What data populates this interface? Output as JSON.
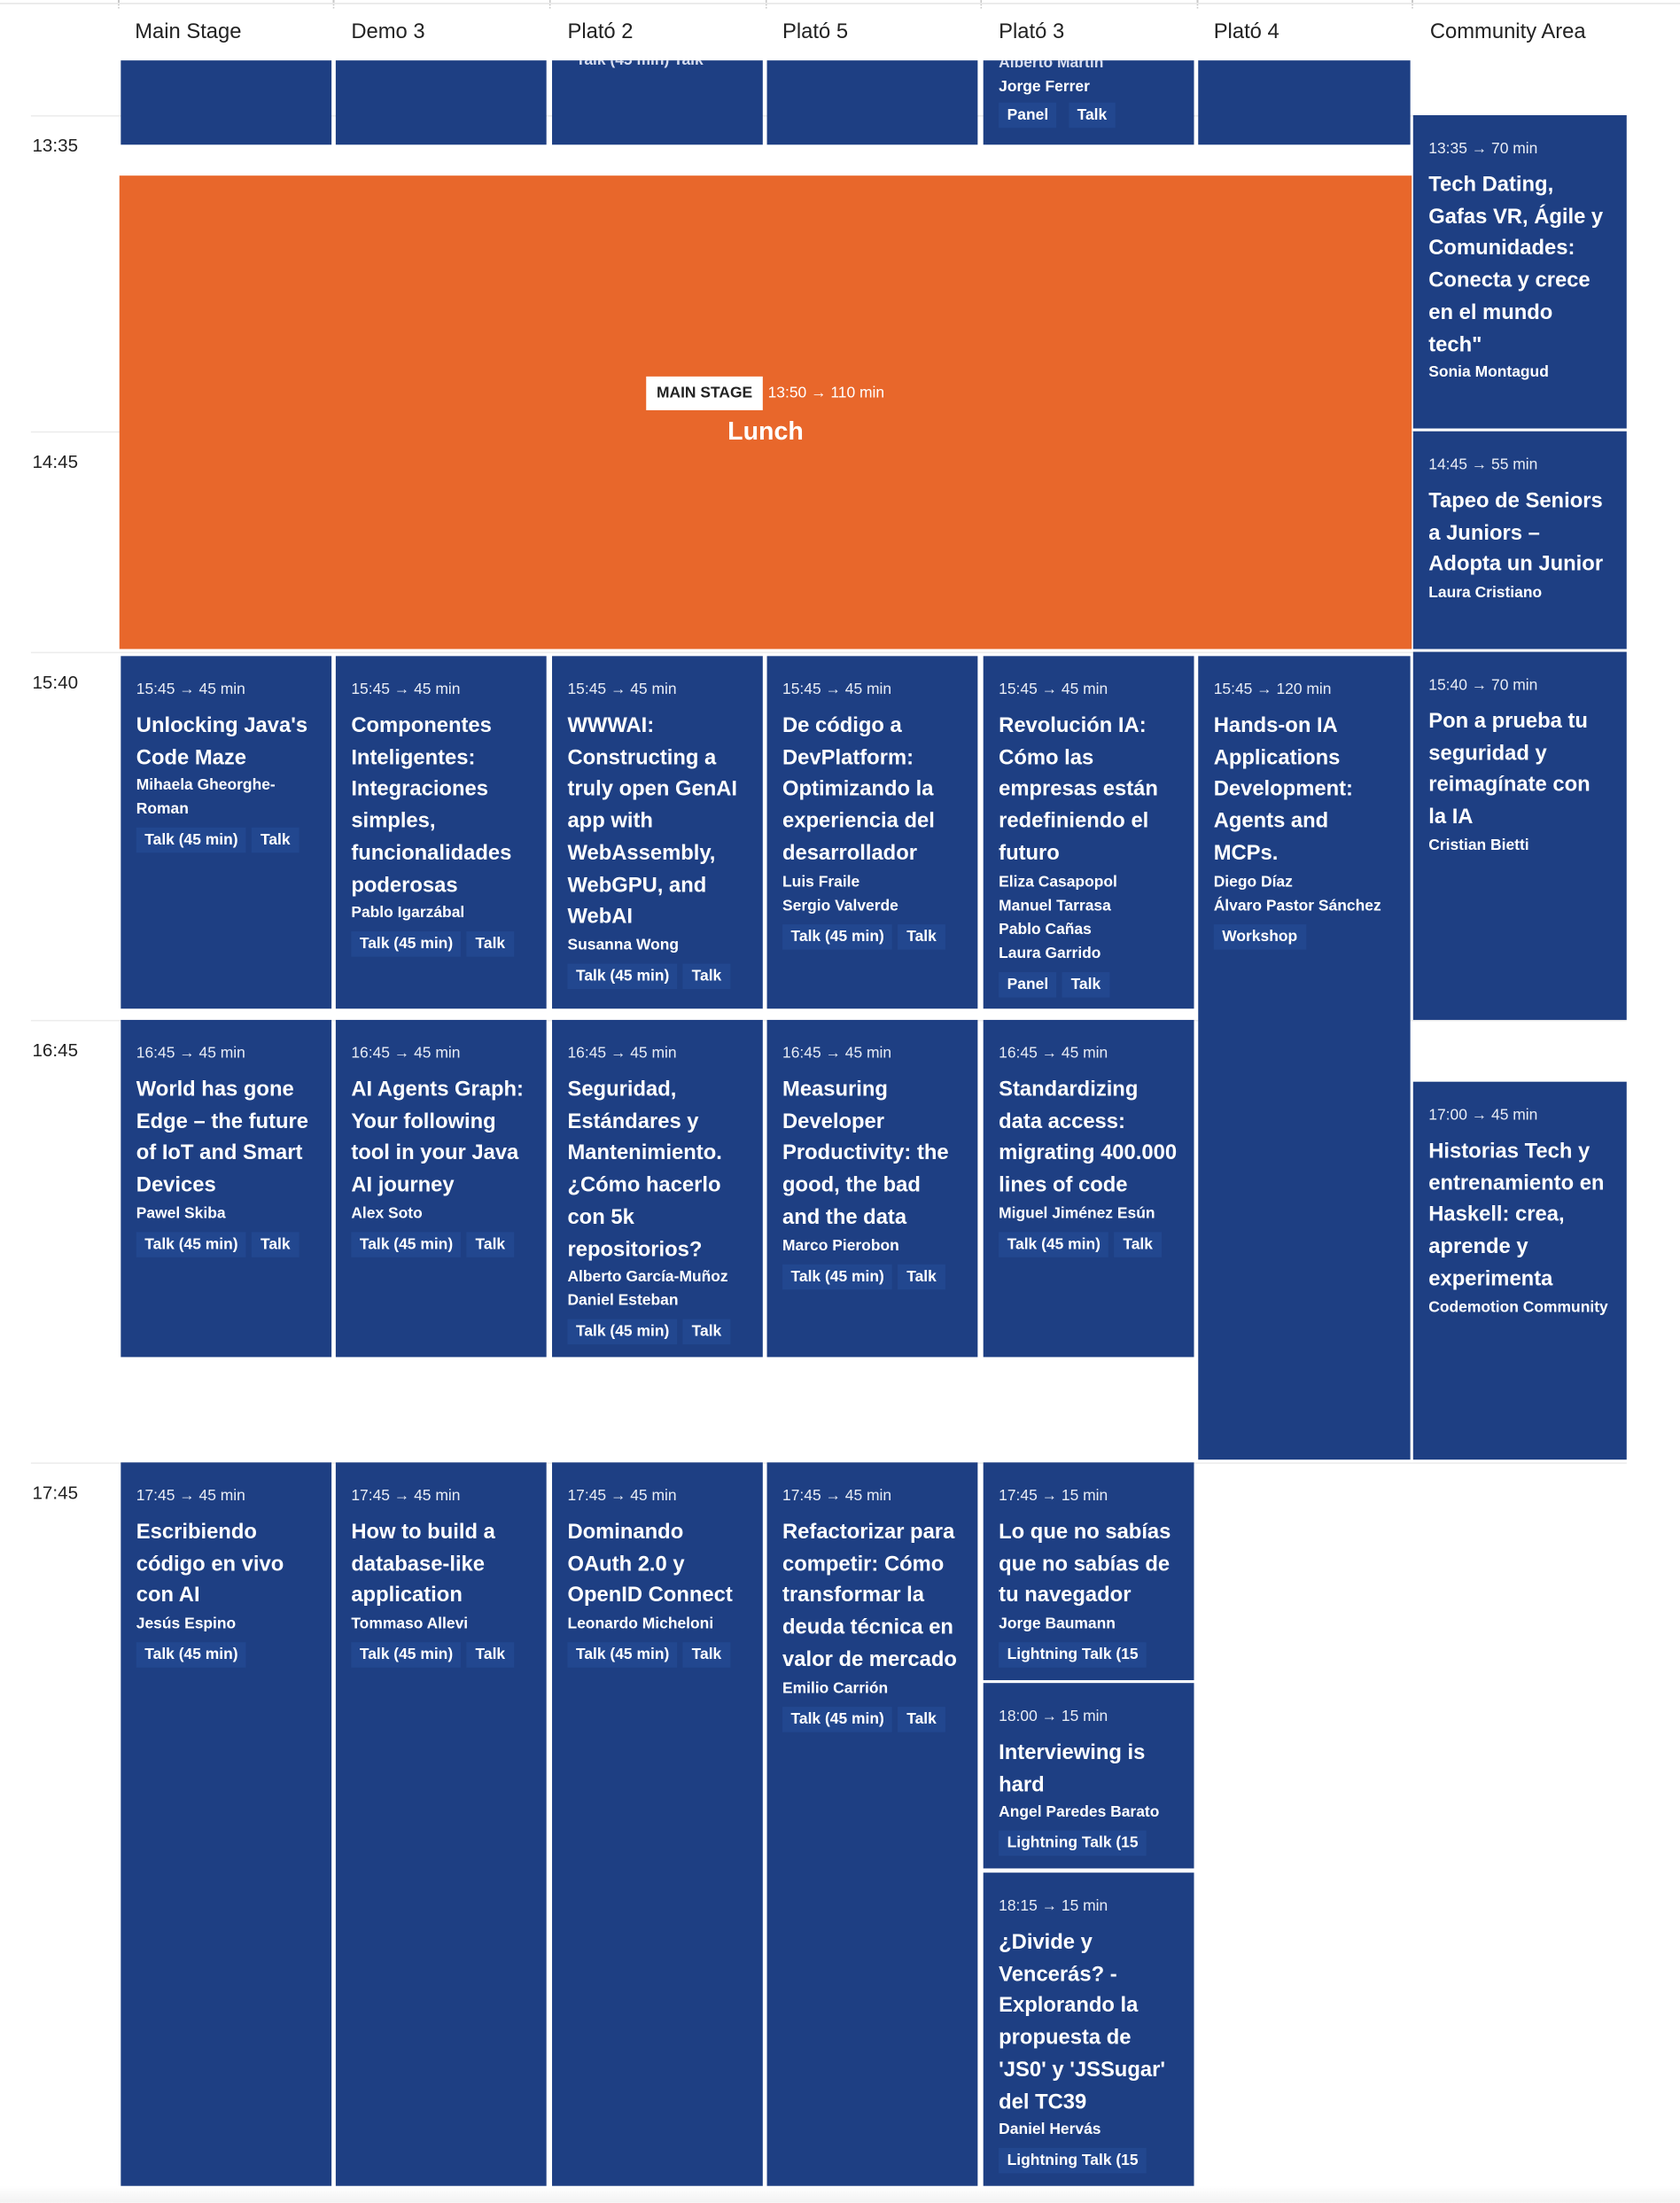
{
  "columns": [
    "Main Stage",
    "Demo 3",
    "Plató 2",
    "Plató 5",
    "Plató 3",
    "Plató 4",
    "Community Area"
  ],
  "times": [
    "13:35",
    "14:45",
    "15:40",
    "16:45",
    "17:45"
  ],
  "cutoff": {
    "plato2_tags": "Talk (45 min)    Talk",
    "plato3_speaker_hidden": "Alberto Martín",
    "plato3_speaker": "Jorge Ferrer",
    "plato3_tags": [
      "Panel",
      "Talk"
    ]
  },
  "lunch": {
    "badge": "MAIN STAGE",
    "meta": "13:50 → 110 min",
    "title": "Lunch",
    "color": "#e8672b"
  },
  "sessions": [
    {
      "meta": "13:35 → 70 min",
      "title": "Tech Dating, Gafas VR, Ágile y Comunidades: Conecta y crece en el mundo tech\"",
      "speakers": [
        "Sonia Montagud"
      ],
      "tags": []
    },
    {
      "meta": "14:45 → 55 min",
      "title": "Tapeo de Seniors a Juniors – Adopta un Junior",
      "speakers": [
        "Laura Cristiano"
      ],
      "tags": []
    },
    {
      "meta": "15:45 → 45 min",
      "title": "Unlocking Java's Code Maze",
      "speakers": [
        "Mihaela Gheorghe-Roman"
      ],
      "tags": [
        "Talk (45 min)",
        "Talk"
      ]
    },
    {
      "meta": "15:45 → 45 min",
      "title": "Componentes Inteligentes: Integraciones simples, funcionalidades poderosas",
      "speakers": [
        "Pablo Igarzábal"
      ],
      "tags": [
        "Talk (45 min)",
        "Talk"
      ]
    },
    {
      "meta": "15:45 → 45 min",
      "title": "WWWAI: Constructing a truly open GenAI app with WebAssembly, WebGPU, and WebAI",
      "speakers": [
        "Susanna Wong"
      ],
      "tags": [
        "Talk (45 min)",
        "Talk"
      ]
    },
    {
      "meta": "15:45 → 45 min",
      "title": "De código a DevPlatform: Optimizando la experiencia del desarrollador",
      "speakers": [
        "Luis Fraile",
        "Sergio Valverde"
      ],
      "tags": [
        "Talk (45 min)",
        "Talk"
      ]
    },
    {
      "meta": "15:45 → 45 min",
      "title": "Revolución IA: Cómo las empresas están redefiniendo el futuro",
      "speakers": [
        "Eliza Casapopol",
        "Manuel Tarrasa",
        "Pablo Cañas",
        "Laura Garrido"
      ],
      "tags": [
        "Panel",
        "Talk"
      ]
    },
    {
      "meta": "15:45 → 120 min",
      "title": "Hands-on IA Applications Development: Agents and MCPs.",
      "speakers": [
        "Diego Díaz",
        "Álvaro Pastor Sánchez"
      ],
      "tags": [
        "Workshop"
      ]
    },
    {
      "meta": "15:40 → 70 min",
      "title": "Pon a prueba tu seguridad y reimagínate con la IA",
      "speakers": [
        "Cristian Bietti"
      ],
      "tags": []
    },
    {
      "meta": "16:45 → 45 min",
      "title": "World has gone Edge – the future of IoT and Smart Devices",
      "speakers": [
        "Pawel Skiba"
      ],
      "tags": [
        "Talk (45 min)",
        "Talk"
      ]
    },
    {
      "meta": "16:45 → 45 min",
      "title": "AI Agents Graph: Your following tool in your Java AI journey",
      "speakers": [
        "Alex Soto"
      ],
      "tags": [
        "Talk (45 min)",
        "Talk"
      ]
    },
    {
      "meta": "16:45 → 45 min",
      "title": "Seguridad, Estándares y Mantenimiento. ¿Cómo hacerlo con 5k repositorios?",
      "speakers": [
        "Alberto García-Muñoz",
        "Daniel Esteban"
      ],
      "tags": [
        "Talk (45 min)",
        "Talk"
      ]
    },
    {
      "meta": "16:45 → 45 min",
      "title": "Measuring Developer Productivity: the good, the bad and the data",
      "speakers": [
        "Marco Pierobon"
      ],
      "tags": [
        "Talk (45 min)",
        "Talk"
      ]
    },
    {
      "meta": "16:45 → 45 min",
      "title": "Standardizing data access: migrating 400.000 lines of code",
      "speakers": [
        "Miguel Jiménez Esún"
      ],
      "tags": [
        "Talk (45 min)",
        "Talk"
      ]
    },
    {
      "meta": "17:00 → 45 min",
      "title": "Historias Tech y entrenamiento en Haskell: crea, aprende y experimenta",
      "speakers": [
        "Codemotion Community"
      ],
      "tags": []
    },
    {
      "meta": "17:45 → 45 min",
      "title": "Escribiendo código en vivo con AI",
      "speakers": [
        "Jesús Espino"
      ],
      "tags": [
        "Talk (45 min)"
      ]
    },
    {
      "meta": "17:45 → 45 min",
      "title": "How to build a database-like application",
      "speakers": [
        "Tommaso Allevi"
      ],
      "tags": [
        "Talk (45 min)",
        "Talk"
      ]
    },
    {
      "meta": "17:45 → 45 min",
      "title": "Dominando OAuth 2.0 y OpenID Connect",
      "speakers": [
        "Leonardo Micheloni"
      ],
      "tags": [
        "Talk (45 min)",
        "Talk"
      ]
    },
    {
      "meta": "17:45 → 45 min",
      "title": "Refactorizar para competir: Cómo transformar la deuda técnica en valor de mercado",
      "speakers": [
        "Emilio Carrión"
      ],
      "tags": [
        "Talk (45 min)",
        "Talk"
      ]
    },
    {
      "meta": "17:45 → 15 min",
      "title": "Lo que no sabías que no sabías de tu navegador",
      "speakers": [
        "Jorge Baumann"
      ],
      "tags": [
        "Lightning Talk (15"
      ]
    },
    {
      "meta": "18:00 → 15 min",
      "title": "Interviewing is hard",
      "speakers": [
        "Angel Paredes Barato"
      ],
      "tags": [
        "Lightning Talk (15"
      ]
    },
    {
      "meta": "18:15 → 15 min",
      "title": "¿Divide y Vencerás? - Explorando la propuesta de 'JS0' y 'JSSugar' del TC39",
      "speakers": [
        "Daniel Hervás"
      ],
      "tags": [
        "Lightning Talk (15"
      ]
    }
  ]
}
